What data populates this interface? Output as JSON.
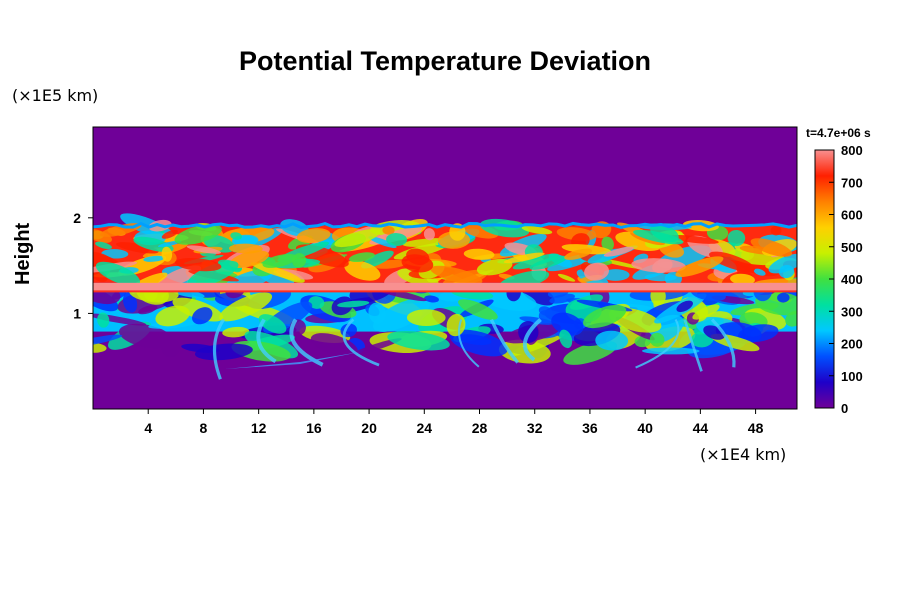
{
  "chart_data": {
    "type": "heatmap",
    "title": "Potential Temperature Deviation",
    "ylabel": "Height",
    "xlabel": "",
    "x_unit": "(×1E4 km)",
    "y_unit": "(×1E5 km)",
    "time_label": "t=4.7e+06 s",
    "xlim": [
      0,
      51
    ],
    "ylim": [
      0,
      2.95
    ],
    "x_ticks": [
      4,
      8,
      12,
      16,
      20,
      24,
      28,
      32,
      36,
      40,
      44,
      48
    ],
    "y_ticks": [
      1,
      2
    ],
    "colorbar": {
      "min": 0,
      "max": 800,
      "ticks": [
        0,
        100,
        200,
        300,
        400,
        500,
        600,
        700,
        800
      ],
      "colors": [
        "#6f0098",
        "#1e00c8",
        "#0050ff",
        "#00c8ff",
        "#00e0a0",
        "#40e040",
        "#c8f000",
        "#ffd000",
        "#ff8000",
        "#ff2000",
        "#f89090"
      ]
    },
    "layers": [
      {
        "name": "background",
        "y_range": [
          0,
          2.95
        ],
        "value": 0
      },
      {
        "name": "lower turbulent layer",
        "y_range": [
          0.45,
          1.25
        ],
        "value": 200
      },
      {
        "name": "hot band",
        "y_range": [
          1.23,
          1.32
        ],
        "value": 800
      },
      {
        "name": "upper turbulent layer",
        "y_range": [
          1.32,
          1.92
        ],
        "value": 650
      }
    ]
  }
}
